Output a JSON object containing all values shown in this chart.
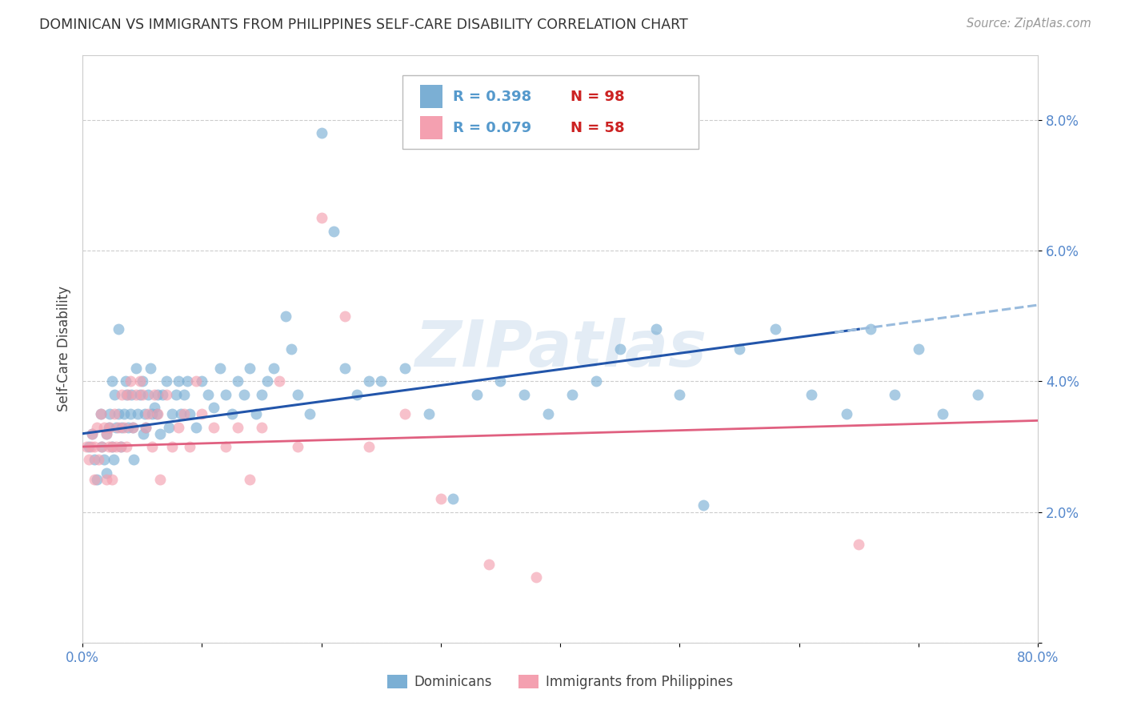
{
  "title": "DOMINICAN VS IMMIGRANTS FROM PHILIPPINES SELF-CARE DISABILITY CORRELATION CHART",
  "source": "Source: ZipAtlas.com",
  "ylabel": "Self-Care Disability",
  "xlim": [
    0,
    0.8
  ],
  "ylim": [
    0,
    0.09
  ],
  "xtick_positions": [
    0.0,
    0.1,
    0.2,
    0.3,
    0.4,
    0.5,
    0.6,
    0.7,
    0.8
  ],
  "xticklabels": [
    "0.0%",
    "",
    "",
    "",
    "",
    "",
    "",
    "",
    "80.0%"
  ],
  "ytick_positions": [
    0.0,
    0.02,
    0.04,
    0.06,
    0.08
  ],
  "yticklabels": [
    "",
    "2.0%",
    "4.0%",
    "6.0%",
    "8.0%"
  ],
  "dominicans_color": "#7bafd4",
  "philippines_color": "#f4a0b0",
  "trendline_dom_color": "#2255aa",
  "trendline_dom_dash_color": "#99bbdd",
  "trendline_phil_color": "#e06080",
  "background_color": "#ffffff",
  "grid_color": "#cccccc",
  "watermark": "ZIPatlas",
  "legend_R1": "R = 0.398",
  "legend_N1": "N = 98",
  "legend_R2": "R = 0.079",
  "legend_N2": "N = 58",
  "legend_color_R": "#5599cc",
  "legend_color_N": "#cc2222",
  "dom_x": [
    0.005,
    0.008,
    0.01,
    0.012,
    0.015,
    0.016,
    0.018,
    0.02,
    0.02,
    0.022,
    0.023,
    0.025,
    0.025,
    0.026,
    0.027,
    0.028,
    0.03,
    0.03,
    0.032,
    0.033,
    0.035,
    0.036,
    0.037,
    0.038,
    0.04,
    0.041,
    0.042,
    0.043,
    0.045,
    0.046,
    0.048,
    0.05,
    0.051,
    0.052,
    0.053,
    0.055,
    0.057,
    0.058,
    0.06,
    0.062,
    0.063,
    0.065,
    0.067,
    0.07,
    0.072,
    0.075,
    0.078,
    0.08,
    0.082,
    0.085,
    0.088,
    0.09,
    0.095,
    0.1,
    0.105,
    0.11,
    0.115,
    0.12,
    0.125,
    0.13,
    0.135,
    0.14,
    0.145,
    0.15,
    0.155,
    0.16,
    0.17,
    0.175,
    0.18,
    0.19,
    0.2,
    0.21,
    0.22,
    0.23,
    0.24,
    0.25,
    0.27,
    0.29,
    0.31,
    0.33,
    0.35,
    0.37,
    0.39,
    0.41,
    0.43,
    0.45,
    0.48,
    0.5,
    0.52,
    0.55,
    0.58,
    0.61,
    0.64,
    0.66,
    0.68,
    0.7,
    0.72,
    0.75
  ],
  "dom_y": [
    0.03,
    0.032,
    0.028,
    0.025,
    0.035,
    0.03,
    0.028,
    0.032,
    0.026,
    0.033,
    0.035,
    0.04,
    0.03,
    0.028,
    0.038,
    0.033,
    0.048,
    0.035,
    0.03,
    0.033,
    0.035,
    0.04,
    0.038,
    0.033,
    0.035,
    0.038,
    0.033,
    0.028,
    0.042,
    0.035,
    0.038,
    0.04,
    0.032,
    0.035,
    0.033,
    0.038,
    0.042,
    0.035,
    0.036,
    0.035,
    0.038,
    0.032,
    0.038,
    0.04,
    0.033,
    0.035,
    0.038,
    0.04,
    0.035,
    0.038,
    0.04,
    0.035,
    0.033,
    0.04,
    0.038,
    0.036,
    0.042,
    0.038,
    0.035,
    0.04,
    0.038,
    0.042,
    0.035,
    0.038,
    0.04,
    0.042,
    0.05,
    0.045,
    0.038,
    0.035,
    0.078,
    0.063,
    0.042,
    0.038,
    0.04,
    0.04,
    0.042,
    0.035,
    0.022,
    0.038,
    0.04,
    0.038,
    0.035,
    0.038,
    0.04,
    0.045,
    0.048,
    0.038,
    0.021,
    0.045,
    0.048,
    0.038,
    0.035,
    0.048,
    0.038,
    0.045,
    0.035,
    0.038
  ],
  "phil_x": [
    0.003,
    0.005,
    0.007,
    0.008,
    0.01,
    0.01,
    0.012,
    0.013,
    0.015,
    0.016,
    0.018,
    0.02,
    0.02,
    0.022,
    0.023,
    0.025,
    0.025,
    0.027,
    0.028,
    0.03,
    0.032,
    0.033,
    0.035,
    0.037,
    0.038,
    0.04,
    0.042,
    0.045,
    0.048,
    0.05,
    0.053,
    0.055,
    0.058,
    0.06,
    0.063,
    0.065,
    0.07,
    0.075,
    0.08,
    0.085,
    0.09,
    0.095,
    0.1,
    0.11,
    0.12,
    0.13,
    0.14,
    0.15,
    0.165,
    0.18,
    0.2,
    0.22,
    0.24,
    0.27,
    0.3,
    0.34,
    0.38,
    0.65
  ],
  "phil_y": [
    0.03,
    0.028,
    0.03,
    0.032,
    0.03,
    0.025,
    0.033,
    0.028,
    0.035,
    0.03,
    0.033,
    0.025,
    0.032,
    0.03,
    0.033,
    0.03,
    0.025,
    0.035,
    0.03,
    0.033,
    0.03,
    0.038,
    0.033,
    0.03,
    0.038,
    0.04,
    0.033,
    0.038,
    0.04,
    0.038,
    0.033,
    0.035,
    0.03,
    0.038,
    0.035,
    0.025,
    0.038,
    0.03,
    0.033,
    0.035,
    0.03,
    0.04,
    0.035,
    0.033,
    0.03,
    0.033,
    0.025,
    0.033,
    0.04,
    0.03,
    0.065,
    0.05,
    0.03,
    0.035,
    0.022,
    0.012,
    0.01,
    0.015
  ]
}
